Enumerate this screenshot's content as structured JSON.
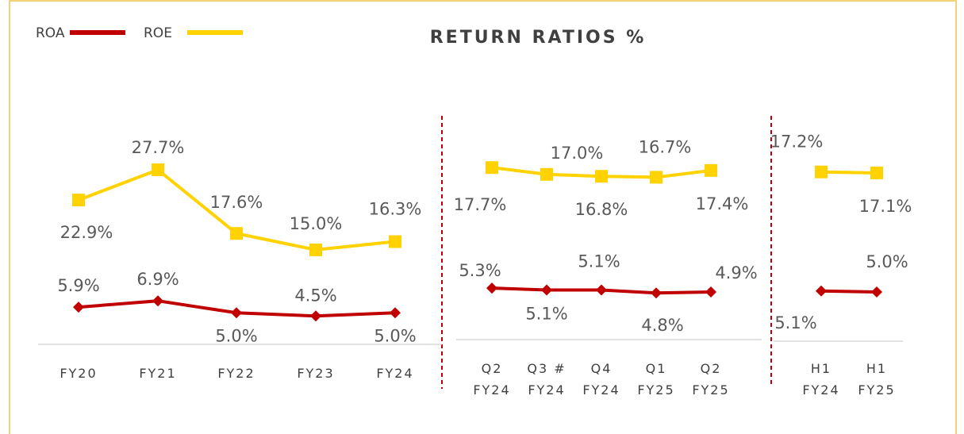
{
  "chart_data": [
    {
      "type": "line",
      "title": "RETURN RATIOS %",
      "categories": [
        "FY20",
        "FY21",
        "FY22",
        "FY23",
        "FY24"
      ],
      "ylim": [
        0,
        35
      ],
      "series": [
        {
          "name": "ROA",
          "color": "#c00000",
          "values": [
            5.9,
            6.9,
            5.0,
            4.5,
            5.0
          ],
          "value_labels": [
            "5.9%",
            "6.9%",
            "5.0%",
            "4.5%",
            "5.0%"
          ]
        },
        {
          "name": "ROE",
          "color": "#ffd200",
          "values": [
            22.9,
            27.7,
            17.6,
            15.0,
            16.3
          ],
          "value_labels": [
            "22.9%",
            "27.7%",
            "17.6%",
            "15.0%",
            "16.3%"
          ]
        }
      ]
    },
    {
      "type": "line",
      "categories": [
        "Q2\nFY24",
        "Q3 #\nFY24",
        "Q4\nFY24",
        "Q1\nFY25",
        "Q2\nFY25"
      ],
      "ylim": [
        0,
        20
      ],
      "series": [
        {
          "color": "#c00000",
          "values": [
            5.3,
            5.1,
            5.1,
            4.8,
            4.9
          ],
          "value_labels": [
            "5.3%",
            "5.1%",
            "5.1%",
            "4.8%",
            "4.9%"
          ]
        },
        {
          "color": "#ffd200",
          "values": [
            17.7,
            17.0,
            16.8,
            16.7,
            17.4
          ],
          "value_labels": [
            "17.7%",
            "17.0%",
            "16.8%",
            "16.7%",
            "17.4%"
          ]
        }
      ]
    },
    {
      "type": "line",
      "categories": [
        "H1\nFY24",
        "H1\nFY25"
      ],
      "ylim": [
        0,
        20
      ],
      "series": [
        {
          "color": "#c00000",
          "values": [
            5.1,
            5.0
          ],
          "value_labels": [
            "5.1%",
            "5.0%"
          ]
        },
        {
          "color": "#ffd200",
          "values": [
            17.2,
            17.1
          ],
          "value_labels": [
            "17.2%",
            "17.1%"
          ]
        }
      ]
    }
  ]
}
